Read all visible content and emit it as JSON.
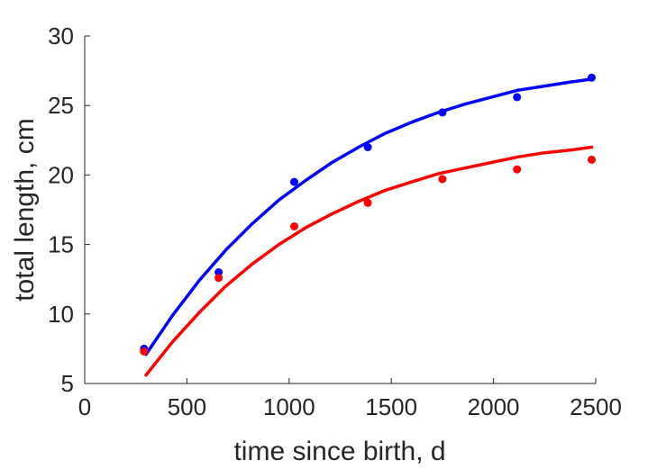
{
  "chart_data": {
    "type": "scatter",
    "xlabel": "time since birth, d",
    "ylabel": "total length, cm",
    "xlim": [
      0,
      2500
    ],
    "ylim": [
      5,
      30
    ],
    "xticks": [
      0,
      500,
      1000,
      1500,
      2000,
      2500
    ],
    "yticks": [
      5,
      10,
      15,
      20,
      25,
      30
    ],
    "grid": false,
    "legend": "none",
    "series": [
      {
        "color": "#0000ff",
        "points": {
          "x": [
            290,
            655,
            1025,
            1385,
            1750,
            2115,
            2480
          ],
          "y": [
            7.5,
            13.0,
            19.5,
            22.0,
            24.5,
            25.6,
            27.0
          ]
        },
        "fit": {
          "x": [
            300,
            430,
            560,
            690,
            820,
            950,
            1080,
            1210,
            1340,
            1470,
            1600,
            1730,
            1860,
            1990,
            2120,
            2250,
            2380,
            2480
          ],
          "y": [
            7.1,
            9.9,
            12.4,
            14.6,
            16.5,
            18.2,
            19.6,
            20.9,
            22.0,
            23.0,
            23.8,
            24.5,
            25.1,
            25.6,
            26.1,
            26.4,
            26.7,
            26.9
          ]
        }
      },
      {
        "color": "#ff0000",
        "points": {
          "x": [
            290,
            655,
            1025,
            1385,
            1750,
            2115,
            2480
          ],
          "y": [
            7.3,
            12.6,
            16.3,
            18.0,
            19.7,
            20.4,
            21.1
          ]
        },
        "fit": {
          "x": [
            300,
            430,
            560,
            690,
            820,
            950,
            1080,
            1210,
            1340,
            1470,
            1600,
            1730,
            1860,
            1990,
            2120,
            2250,
            2380,
            2480
          ],
          "y": [
            5.6,
            8.0,
            10.1,
            12.0,
            13.6,
            15.0,
            16.2,
            17.2,
            18.1,
            18.9,
            19.5,
            20.1,
            20.5,
            20.9,
            21.3,
            21.6,
            21.8,
            22.0
          ]
        }
      }
    ]
  }
}
